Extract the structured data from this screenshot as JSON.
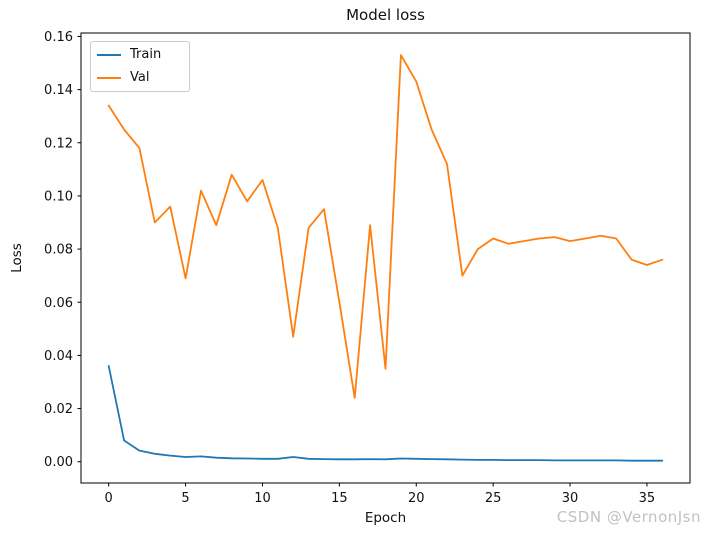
{
  "chart_data": {
    "type": "line",
    "title": "Model loss",
    "xlabel": "Epoch",
    "ylabel": "Loss",
    "x": [
      0,
      1,
      2,
      3,
      4,
      5,
      6,
      7,
      8,
      9,
      10,
      11,
      12,
      13,
      14,
      15,
      16,
      17,
      18,
      19,
      20,
      21,
      22,
      23,
      24,
      25,
      26,
      27,
      28,
      29,
      30,
      31,
      32,
      33,
      34,
      35,
      36
    ],
    "series": [
      {
        "name": "Train",
        "color": "#1f77b4",
        "values": [
          0.036,
          0.008,
          0.0042,
          0.003,
          0.0023,
          0.0018,
          0.002,
          0.0015,
          0.0013,
          0.0012,
          0.0011,
          0.0011,
          0.0018,
          0.0011,
          0.001,
          0.0009,
          0.0009,
          0.001,
          0.0009,
          0.0012,
          0.0011,
          0.001,
          0.0009,
          0.0008,
          0.0007,
          0.0007,
          0.0006,
          0.0006,
          0.0006,
          0.0005,
          0.0005,
          0.0005,
          0.0005,
          0.0005,
          0.0004,
          0.0004,
          0.0004
        ]
      },
      {
        "name": "Val",
        "color": "#ff7f0e",
        "values": [
          0.134,
          0.125,
          0.118,
          0.09,
          0.096,
          0.069,
          0.102,
          0.089,
          0.108,
          0.098,
          0.106,
          0.088,
          0.047,
          0.088,
          0.095,
          0.06,
          0.024,
          0.089,
          0.035,
          0.153,
          0.143,
          0.125,
          0.112,
          0.07,
          0.08,
          0.084,
          0.082,
          0.083,
          0.084,
          0.0845,
          0.083,
          0.084,
          0.085,
          0.084,
          0.076,
          0.074,
          0.076
        ]
      }
    ],
    "xlim": [
      -1.8,
      37.8
    ],
    "ylim": [
      -0.008,
      0.1613
    ],
    "xticks": [
      0,
      5,
      10,
      15,
      20,
      25,
      30,
      35
    ],
    "xtick_labels": [
      "0",
      "5",
      "10",
      "15",
      "20",
      "25",
      "30",
      "35"
    ],
    "yticks": [
      0.0,
      0.02,
      0.04,
      0.06,
      0.08,
      0.1,
      0.12,
      0.14,
      0.16
    ],
    "ytick_labels": [
      "0.00",
      "0.02",
      "0.04",
      "0.06",
      "0.08",
      "0.10",
      "0.12",
      "0.14",
      "0.16"
    ],
    "legend_position": "upper left",
    "grid": false
  },
  "watermark": {
    "text": "CSDN @VernonJsn",
    "color": "#c2c2c2"
  }
}
